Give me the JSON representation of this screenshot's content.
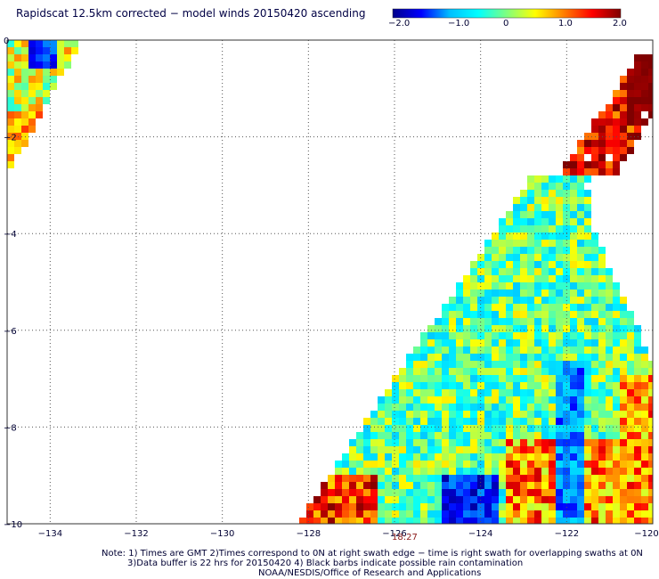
{
  "title": "Rapidscat 12.5km corrected − model winds 20150420 ascending",
  "colorbar": {
    "tick_labels": [
      "−2.0",
      "−1.0",
      "0",
      "1.0",
      "2.0"
    ],
    "range": [
      -2.0,
      2.0
    ],
    "colors": [
      "#00008b",
      "#0000ff",
      "#00bfff",
      "#00ffff",
      "#7fff7f",
      "#ffff00",
      "#ff7f00",
      "#ff0000",
      "#7f0000"
    ]
  },
  "axes": {
    "x_ticks": [
      "−134",
      "−132",
      "−130",
      "−128",
      "−126",
      "−124",
      "−122",
      "−120"
    ],
    "y_ticks": [
      "0",
      "−2",
      "−4",
      "−6",
      "−8",
      "−10"
    ],
    "lon_range": [
      -135,
      -120
    ],
    "lat_range": [
      -10,
      0
    ],
    "grid": true,
    "grid_style": "dotted"
  },
  "time_label": "18:27",
  "notes": [
    "Note: 1) Times are GMT 2)Times correspond to 0N at right swath edge − time is right swath for overlapping swaths at 0N",
    "3)Data buffer is 22 hrs for 20150420 4) Black barbs indicate possible rain contamination",
    "NOAA/NESDIS/Office of Research and Applications"
  ]
}
